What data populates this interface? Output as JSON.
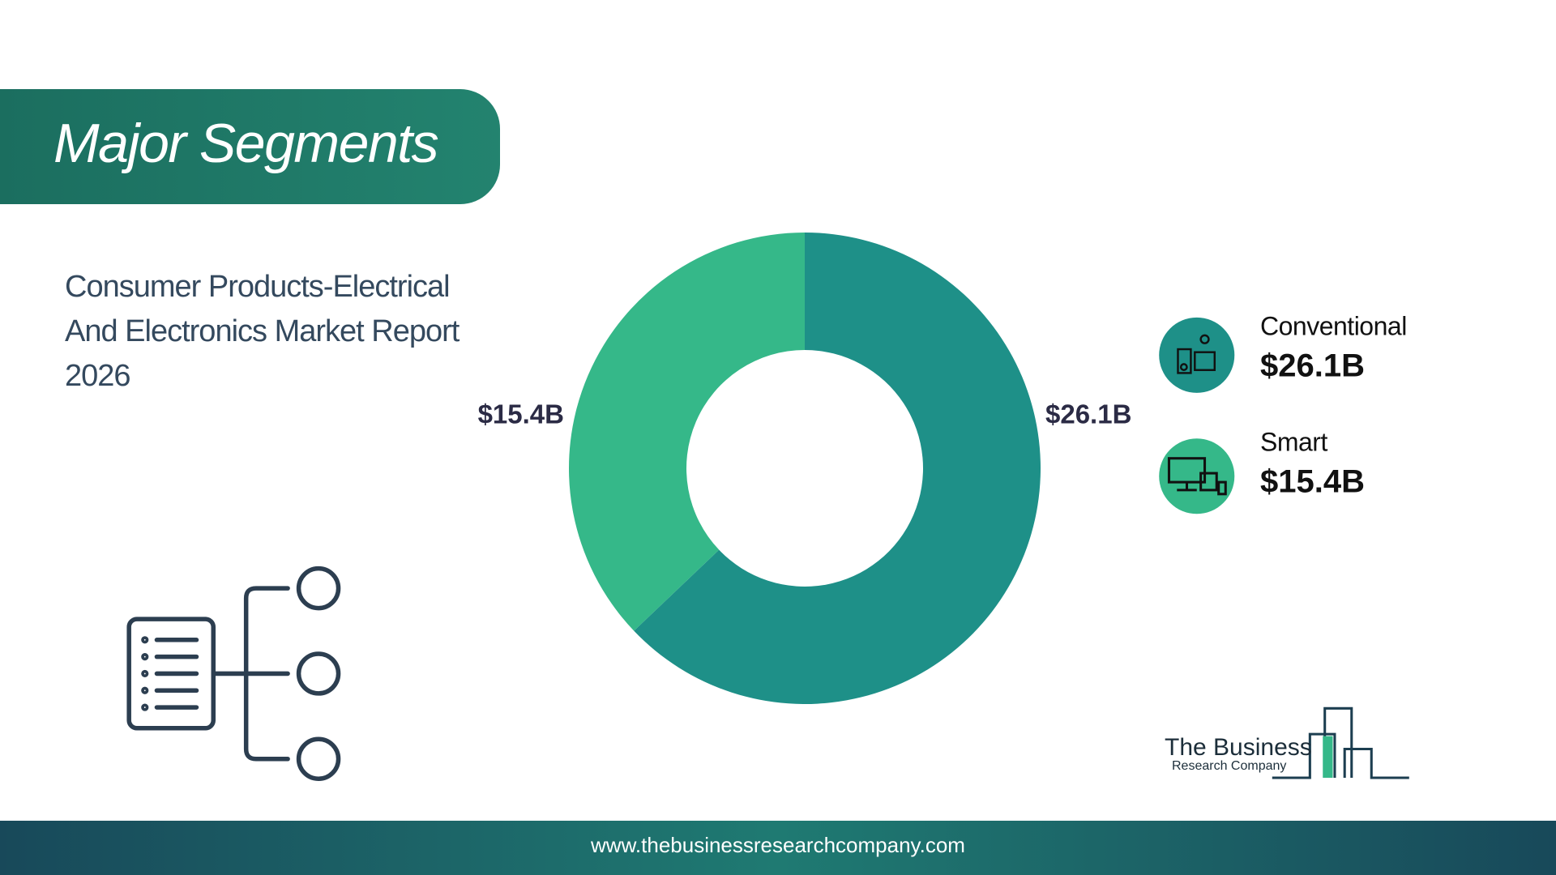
{
  "chart_data": {
    "type": "donut",
    "title": "Major Segments",
    "subtitle": [
      "Consumer Products-Electrical",
      "And Electronics Market Report",
      "2026"
    ],
    "categories": [
      "Conventional",
      "Smart"
    ],
    "values": [
      26.1,
      15.4
    ],
    "value_labels": [
      "$26.1B",
      "$15.4B"
    ],
    "colors": [
      "#1e9088",
      "#35b889"
    ]
  },
  "logo": {
    "line1": "The Business",
    "line2": "Research Company"
  },
  "footer": {
    "url": "www.thebusinessresearchcompany.com"
  }
}
